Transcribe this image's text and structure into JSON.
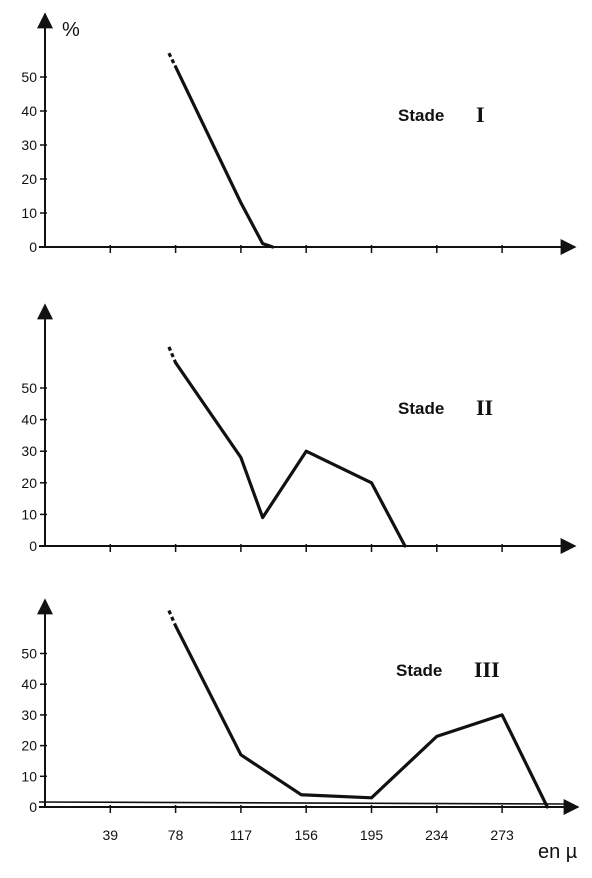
{
  "chart_data": [
    {
      "type": "line",
      "title": "Stade",
      "roman": "I",
      "ylabel": "%",
      "xlabel": "",
      "y_ticks": [
        "0",
        "10",
        "20",
        "30",
        "40",
        "50"
      ],
      "x_tick_labels": [],
      "ylim": [
        0,
        64
      ],
      "xlim": [
        0,
        312
      ],
      "dashed_start": true,
      "x": [
        74,
        78,
        117,
        130,
        136
      ],
      "y": [
        57,
        53,
        13,
        1,
        0
      ],
      "grid": false,
      "legend": "none"
    },
    {
      "type": "line",
      "title": "Stade",
      "roman": "II",
      "ylabel": "",
      "xlabel": "",
      "y_ticks": [
        "0",
        "10",
        "20",
        "30",
        "40",
        "50"
      ],
      "x_tick_labels": [],
      "ylim": [
        0,
        68
      ],
      "xlim": [
        0,
        312
      ],
      "dashed_start": true,
      "x": [
        74,
        78,
        117,
        130,
        156,
        195,
        215
      ],
      "y": [
        63,
        58,
        28,
        9,
        30,
        20,
        0
      ],
      "grid": false,
      "legend": "none"
    },
    {
      "type": "line",
      "title": "Stade",
      "roman": "III",
      "ylabel": "",
      "xlabel": "en µ",
      "y_ticks": [
        "0",
        "10",
        "20",
        "30",
        "40",
        "50"
      ],
      "x_tick_labels": [
        "39",
        "78",
        "117",
        "156",
        "195",
        "234",
        "273"
      ],
      "ylim": [
        0,
        68
      ],
      "xlim": [
        0,
        312
      ],
      "dashed_start": true,
      "x": [
        74,
        78,
        117,
        153,
        195,
        234,
        273,
        300
      ],
      "y": [
        64,
        59,
        17,
        4,
        3,
        23,
        30,
        0
      ],
      "grid": false,
      "legend": "none"
    }
  ]
}
